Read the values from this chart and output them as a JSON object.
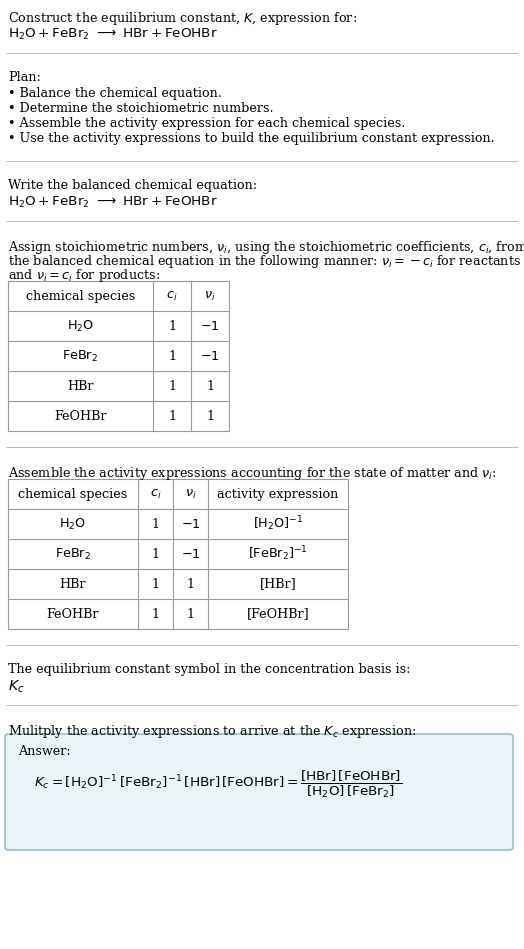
{
  "bg_color": "#ffffff",
  "answer_bg_color": "#e8f4f8",
  "answer_border_color": "#9bbfcc",
  "text_color": "#000000",
  "title_line1": "Construct the equilibrium constant, $K$, expression for:",
  "plan_header": "Plan:",
  "plan_items": [
    "• Balance the chemical equation.",
    "• Determine the stoichiometric numbers.",
    "• Assemble the activity expression for each chemical species.",
    "• Use the activity expressions to build the equilibrium constant expression."
  ],
  "balanced_eq_header": "Write the balanced chemical equation:",
  "stoich_text1": "Assign stoichiometric numbers, $\\nu_i$, using the stoichiometric coefficients, $c_i$, from",
  "stoich_text2": "the balanced chemical equation in the following manner: $\\nu_i = -c_i$ for reactants",
  "stoich_text3": "and $\\nu_i = c_i$ for products:",
  "activity_header": "Assemble the activity expressions accounting for the state of matter and $\\nu_i$:",
  "kc_header": "The equilibrium constant symbol in the concentration basis is:",
  "multiply_header": "Mulitply the activity expressions to arrive at the $K_c$ expression:",
  "answer_label": "Answer:"
}
